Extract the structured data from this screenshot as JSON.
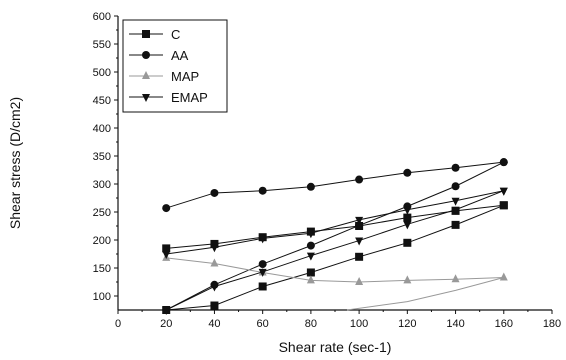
{
  "chart_data": {
    "type": "line",
    "title": "",
    "xlabel": "Shear rate (sec-1)",
    "ylabel": "Shear stress (D/cm2)",
    "xlim": [
      0,
      180
    ],
    "ylim": [
      75,
      600
    ],
    "xticks": [
      0,
      20,
      40,
      60,
      80,
      100,
      120,
      140,
      160,
      180
    ],
    "yticks": [
      100,
      150,
      200,
      250,
      300,
      350,
      400,
      450,
      500,
      550,
      600
    ],
    "grid": false,
    "legend_position": "top-left",
    "series": [
      {
        "name": "C",
        "marker": "square",
        "color": "#111111",
        "curves": [
          {
            "x": [
              20,
              40,
              60,
              80,
              100,
              120,
              140,
              160
            ],
            "y": [
              185,
              193,
              205,
              215,
              225,
              240,
              252,
              262
            ],
            "markers": true
          },
          {
            "x": [
              20,
              40,
              60,
              80,
              100,
              120,
              140,
              160
            ],
            "y": [
              75,
              83,
              117,
              142,
              170,
              195,
              227,
              262
            ],
            "markers": true
          }
        ]
      },
      {
        "name": "AA",
        "marker": "circle",
        "color": "#111111",
        "curves": [
          {
            "x": [
              20,
              40,
              60,
              80,
              100,
              120,
              140,
              160
            ],
            "y": [
              257,
              284,
              288,
              295,
              308,
              320,
              329,
              339
            ],
            "markers": true
          },
          {
            "x": [
              20,
              40,
              60,
              80,
              100,
              120,
              140,
              160
            ],
            "y": [
              75,
              120,
              157,
              190,
              226,
              260,
              296,
              339
            ],
            "markers": true
          }
        ]
      },
      {
        "name": "MAP",
        "marker": "triangle-up",
        "color": "#999999",
        "curves": [
          {
            "x": [
              20,
              40,
              60,
              80,
              100,
              120,
              140,
              160
            ],
            "y": [
              168,
              158,
              142,
              128,
              125,
              128,
              130,
              133
            ],
            "markers": true
          },
          {
            "x": [
              95,
              120,
              140,
              160
            ],
            "y": [
              75,
              90,
              110,
              133
            ],
            "markers": false
          }
        ]
      },
      {
        "name": "EMAP",
        "marker": "triangle-down",
        "color": "#111111",
        "curves": [
          {
            "x": [
              20,
              40,
              60,
              80,
              100,
              120,
              140,
              160
            ],
            "y": [
              175,
              187,
              203,
              212,
              236,
              254,
              270,
              288
            ],
            "markers": true
          },
          {
            "x": [
              20,
              40,
              60,
              80,
              100,
              120,
              140,
              160
            ],
            "y": [
              75,
              117,
              143,
              172,
              199,
              228,
              254,
              288
            ],
            "markers": true
          }
        ]
      }
    ]
  }
}
